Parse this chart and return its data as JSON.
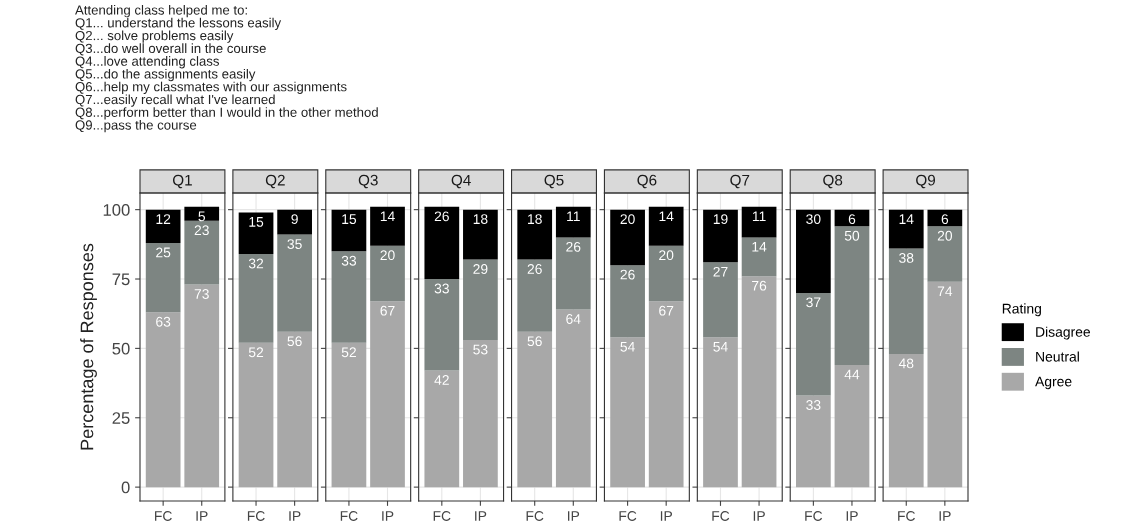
{
  "chart_data": [
    {
      "type": "bar",
      "stacked": true,
      "title": "Q1",
      "annotations": [
        "Attending class helped me to:\nQ1... understand the lessons easily\nQ2... solve problems easily\nQ3...do well overall in the course\nQ4...love attending class\nQ5...do the assignments easily\nQ6...help my classmates with our assignments\nQ7...easily recall what I've learned\nQ8...perform better than I would in the other method\nQ9...pass the course"
      ],
      "ylabel": "Percentage of Responses",
      "categories": [
        "FC",
        "IP"
      ],
      "ylim": [
        -5,
        106
      ],
      "yticks": [
        0,
        25,
        50,
        75,
        100
      ],
      "grid": true,
      "data_labels": true,
      "series": [
        {
          "color": "#a8a8a8",
          "values": [
            63,
            73
          ]
        },
        {
          "color": "#7d8582",
          "values": [
            25,
            23
          ]
        },
        {
          "color": "#000000",
          "values": [
            12,
            5
          ]
        }
      ]
    },
    {
      "type": "bar",
      "stacked": true,
      "title": "Q2",
      "categories": [
        "FC",
        "IP"
      ],
      "ylim": [
        -5,
        106
      ],
      "yticks": [
        0,
        25,
        50,
        75,
        100
      ],
      "tick_labels": "x",
      "grid": true,
      "data_labels": true,
      "series": [
        {
          "color": "#a8a8a8",
          "values": [
            52,
            56
          ]
        },
        {
          "color": "#7d8582",
          "values": [
            32,
            35
          ]
        },
        {
          "color": "#000000",
          "values": [
            15,
            9
          ]
        }
      ]
    },
    {
      "type": "bar",
      "stacked": true,
      "title": "Q3",
      "categories": [
        "FC",
        "IP"
      ],
      "ylim": [
        -5,
        106
      ],
      "yticks": [
        0,
        25,
        50,
        75,
        100
      ],
      "tick_labels": "x",
      "grid": true,
      "data_labels": true,
      "series": [
        {
          "color": "#a8a8a8",
          "values": [
            52,
            67
          ]
        },
        {
          "color": "#7d8582",
          "values": [
            33,
            20
          ]
        },
        {
          "color": "#000000",
          "values": [
            15,
            14
          ]
        }
      ]
    },
    {
      "type": "bar",
      "stacked": true,
      "title": "Q4",
      "categories": [
        "FC",
        "IP"
      ],
      "ylim": [
        -5,
        106
      ],
      "yticks": [
        0,
        25,
        50,
        75,
        100
      ],
      "tick_labels": "x",
      "grid": true,
      "data_labels": true,
      "series": [
        {
          "color": "#a8a8a8",
          "values": [
            42,
            53
          ]
        },
        {
          "color": "#7d8582",
          "values": [
            33,
            29
          ]
        },
        {
          "color": "#000000",
          "values": [
            26,
            18
          ]
        }
      ]
    },
    {
      "type": "bar",
      "stacked": true,
      "title": "Q5",
      "categories": [
        "FC",
        "IP"
      ],
      "ylim": [
        -5,
        106
      ],
      "yticks": [
        0,
        25,
        50,
        75,
        100
      ],
      "tick_labels": "x",
      "grid": true,
      "data_labels": true,
      "series": [
        {
          "color": "#a8a8a8",
          "values": [
            56,
            64
          ]
        },
        {
          "color": "#7d8582",
          "values": [
            26,
            26
          ]
        },
        {
          "color": "#000000",
          "values": [
            18,
            11
          ]
        }
      ]
    },
    {
      "type": "bar",
      "stacked": true,
      "title": "Q6",
      "categories": [
        "FC",
        "IP"
      ],
      "ylim": [
        -5,
        106
      ],
      "yticks": [
        0,
        25,
        50,
        75,
        100
      ],
      "tick_labels": "x",
      "grid": true,
      "data_labels": true,
      "series": [
        {
          "color": "#a8a8a8",
          "values": [
            54,
            67
          ]
        },
        {
          "color": "#7d8582",
          "values": [
            26,
            20
          ]
        },
        {
          "color": "#000000",
          "values": [
            20,
            14
          ]
        }
      ]
    },
    {
      "type": "bar",
      "stacked": true,
      "title": "Q7",
      "categories": [
        "FC",
        "IP"
      ],
      "ylim": [
        -5,
        106
      ],
      "yticks": [
        0,
        25,
        50,
        75,
        100
      ],
      "tick_labels": "x",
      "grid": true,
      "data_labels": true,
      "series": [
        {
          "color": "#a8a8a8",
          "values": [
            54,
            76
          ]
        },
        {
          "color": "#7d8582",
          "values": [
            27,
            14
          ]
        },
        {
          "color": "#000000",
          "values": [
            19,
            11
          ]
        }
      ]
    },
    {
      "type": "bar",
      "stacked": true,
      "title": "Q8",
      "categories": [
        "FC",
        "IP"
      ],
      "ylim": [
        -5,
        106
      ],
      "yticks": [
        0,
        25,
        50,
        75,
        100
      ],
      "tick_labels": "x",
      "grid": true,
      "data_labels": true,
      "series": [
        {
          "color": "#a8a8a8",
          "values": [
            33,
            44
          ]
        },
        {
          "color": "#7d8582",
          "values": [
            37,
            50
          ]
        },
        {
          "color": "#000000",
          "values": [
            30,
            6
          ]
        }
      ]
    },
    {
      "type": "bar",
      "stacked": true,
      "title": "Q9",
      "categories": [
        "FC",
        "IP"
      ],
      "ylim": [
        -5,
        106
      ],
      "yticks": [
        0,
        25,
        50,
        75,
        100
      ],
      "tick_labels": "x",
      "grid": true,
      "data_labels": true,
      "legend": "right",
      "legend_title": "Rating",
      "series": [
        {
          "name": "Agree",
          "color": "#a8a8a8",
          "values": [
            48,
            74
          ]
        },
        {
          "name": "Neutral",
          "color": "#7d8582",
          "values": [
            38,
            20
          ]
        },
        {
          "name": "Disagree",
          "color": "#000000",
          "values": [
            14,
            6
          ]
        }
      ]
    }
  ]
}
